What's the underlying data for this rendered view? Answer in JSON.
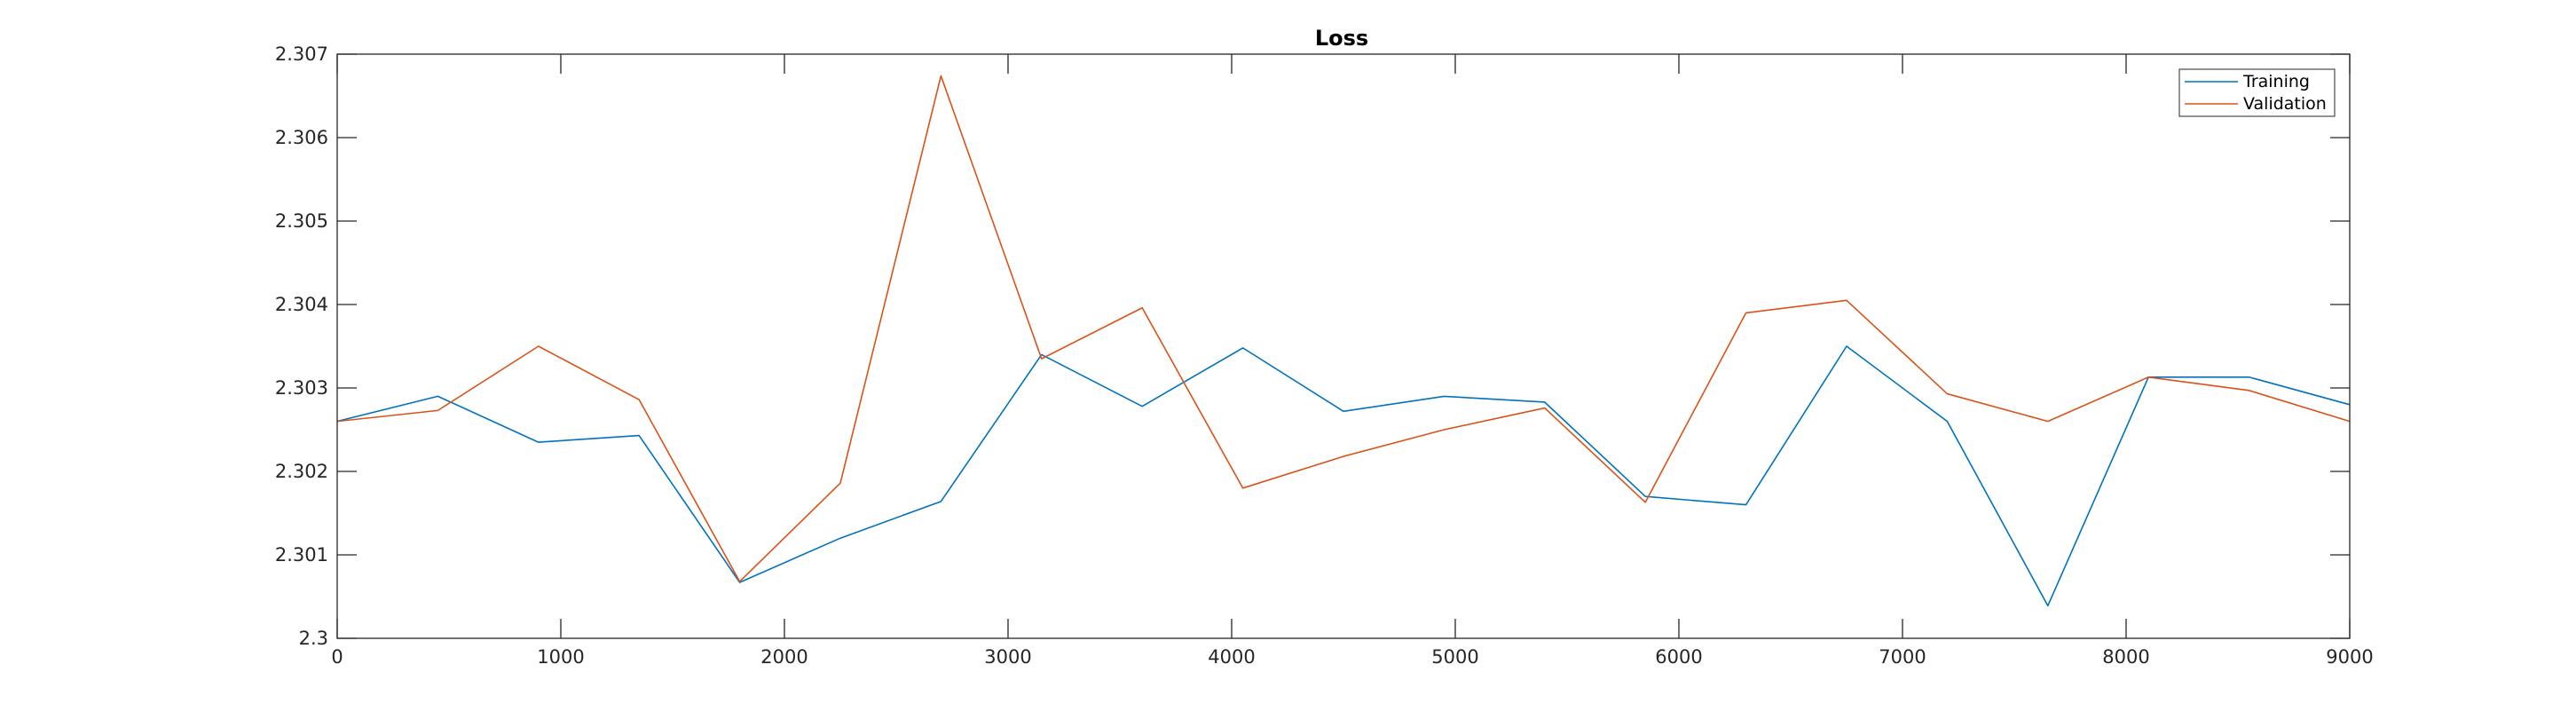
{
  "chart_data": {
    "type": "line",
    "title": "Loss",
    "xlabel": "",
    "ylabel": "",
    "xlim": [
      0,
      9000
    ],
    "ylim": [
      2.3,
      2.307
    ],
    "xticks": [
      0,
      1000,
      2000,
      3000,
      4000,
      5000,
      6000,
      7000,
      8000,
      9000
    ],
    "xtick_labels": [
      "0",
      "1000",
      "2000",
      "3000",
      "4000",
      "5000",
      "6000",
      "7000",
      "8000",
      "9000"
    ],
    "yticks": [
      2.3,
      2.301,
      2.302,
      2.303,
      2.304,
      2.305,
      2.306,
      2.307
    ],
    "ytick_labels": [
      "2.3",
      "2.301",
      "2.302",
      "2.303",
      "2.304",
      "2.305",
      "2.306",
      "2.307"
    ],
    "grid": false,
    "legend_position": "top-right",
    "x": [
      0,
      450,
      900,
      1350,
      1800,
      2250,
      2700,
      3150,
      3600,
      4050,
      4500,
      4950,
      5400,
      5850,
      6300,
      6750,
      7200,
      7650,
      8100,
      8550,
      9000
    ],
    "series": [
      {
        "name": "Training",
        "color": "#0072BD",
        "values": [
          2.3026,
          2.3029,
          2.30235,
          2.30243,
          2.30067,
          2.3012,
          2.30164,
          2.3034,
          2.30278,
          2.30348,
          2.30272,
          2.3029,
          2.30283,
          2.3017,
          2.3016,
          2.3035,
          2.3026,
          2.30039,
          2.30313,
          2.30313,
          2.3028
        ]
      },
      {
        "name": "Validation",
        "color": "#D95319",
        "values": [
          2.3026,
          2.30273,
          2.3035,
          2.30286,
          2.30068,
          2.30186,
          2.30674,
          2.30335,
          2.30396,
          2.3018,
          2.30218,
          2.3025,
          2.30276,
          2.30163,
          2.3039,
          2.30405,
          2.30293,
          2.3026,
          2.30313,
          2.30297,
          2.3026
        ]
      }
    ]
  }
}
